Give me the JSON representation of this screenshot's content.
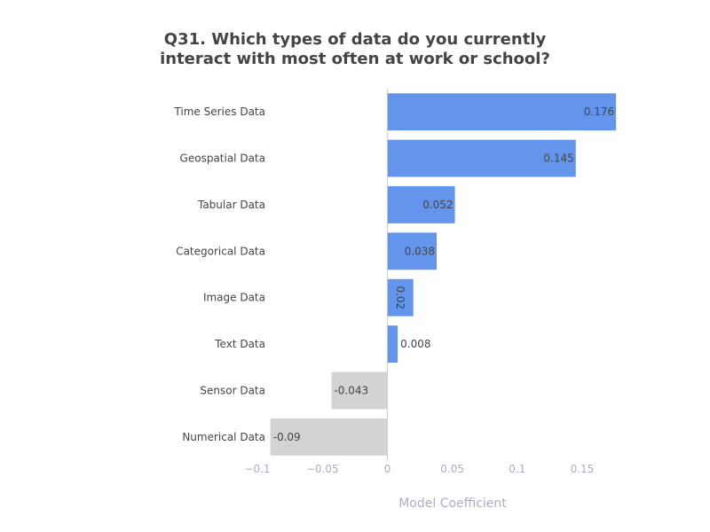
{
  "chart_data": {
    "type": "bar",
    "orientation": "horizontal",
    "title": "Q31. Which types of data do you currently interact with most often at work or school?",
    "xlabel": "Model Coefficient",
    "ylabel": "",
    "categories": [
      "Time Series Data",
      "Geospatial Data",
      "Tabular Data",
      "Categorical Data",
      "Image Data",
      "Text Data",
      "Sensor Data",
      "Numerical Data"
    ],
    "values": [
      0.176,
      0.145,
      0.052,
      0.038,
      0.02,
      0.008,
      -0.043,
      -0.09
    ],
    "data_labels": [
      "0.176",
      "0.145",
      "0.052",
      "0.038",
      "0.02",
      "0.008",
      "-0.043",
      "-0.09"
    ],
    "xlim": [
      -0.1,
      0.18
    ],
    "xticks": [
      -0.1,
      -0.05,
      0,
      0.05,
      0.1,
      0.15
    ],
    "xtick_labels": [
      "−0.1",
      "−0.05",
      "0",
      "0.05",
      "0.1",
      "0.15"
    ],
    "grid": false,
    "legend": "none",
    "colors": {
      "positive": "#6495ed",
      "negative": "#d3d3d3",
      "zero_line": "#cccccc",
      "text": "#444444",
      "axis_text": "#a9afc2"
    }
  }
}
